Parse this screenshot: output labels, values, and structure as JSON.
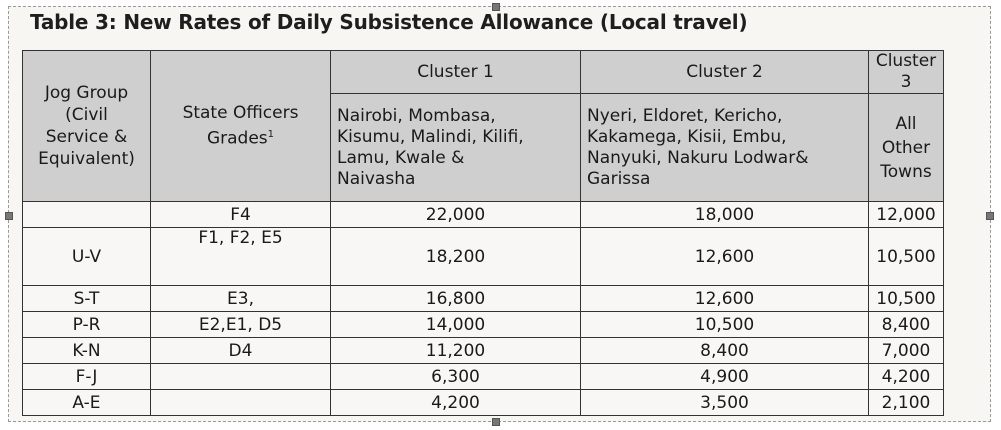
{
  "title": "Table 3: New Rates of Daily Subsistence Allowance (Local travel)",
  "headers": {
    "jog_group": [
      "Jog Group",
      "(Civil",
      "Service &",
      "Equivalent)"
    ],
    "state_officers": "State Officers",
    "grades": "Grades",
    "grades_footnote": "1",
    "cluster1": "Cluster 1",
    "cluster1_towns": [
      "Nairobi, Mombasa,",
      "Kisumu, Malindi, Kilifi,",
      "Lamu, Kwale &",
      "Naivasha"
    ],
    "cluster2": "Cluster 2",
    "cluster2_towns": [
      "Nyeri, Eldoret, Kericho,",
      "Kakamega, Kisii, Embu,",
      "Nanyuki, Nakuru Lodwar&",
      "Garissa"
    ],
    "cluster3": "Cluster 3",
    "cluster3_towns": [
      "All",
      "Other",
      "Towns"
    ]
  },
  "rows": [
    {
      "jog": "",
      "grade": "F4",
      "c1": "22,000",
      "c2": "18,000",
      "c3": "12,000"
    },
    {
      "jog": "U-V",
      "grade": "F1, F2, E5",
      "c1": "18,200",
      "c2": "12,600",
      "c3": "10,500"
    },
    {
      "jog": "S-T",
      "grade": "E3,",
      "c1": "16,800",
      "c2": "12,600",
      "c3": "10,500"
    },
    {
      "jog": "P-R",
      "grade": "E2,E1, D5",
      "c1": "14,000",
      "c2": "10,500",
      "c3": "8,400"
    },
    {
      "jog": "K-N",
      "grade": "D4",
      "c1": "11,200",
      "c2": "8,400",
      "c3": "7,000"
    },
    {
      "jog": "F-J",
      "grade": "",
      "c1": "6,300",
      "c2": "4,900",
      "c3": "4,200"
    },
    {
      "jog": "A-E",
      "grade": "",
      "c1": "4,200",
      "c2": "3,500",
      "c3": "2,100"
    }
  ]
}
